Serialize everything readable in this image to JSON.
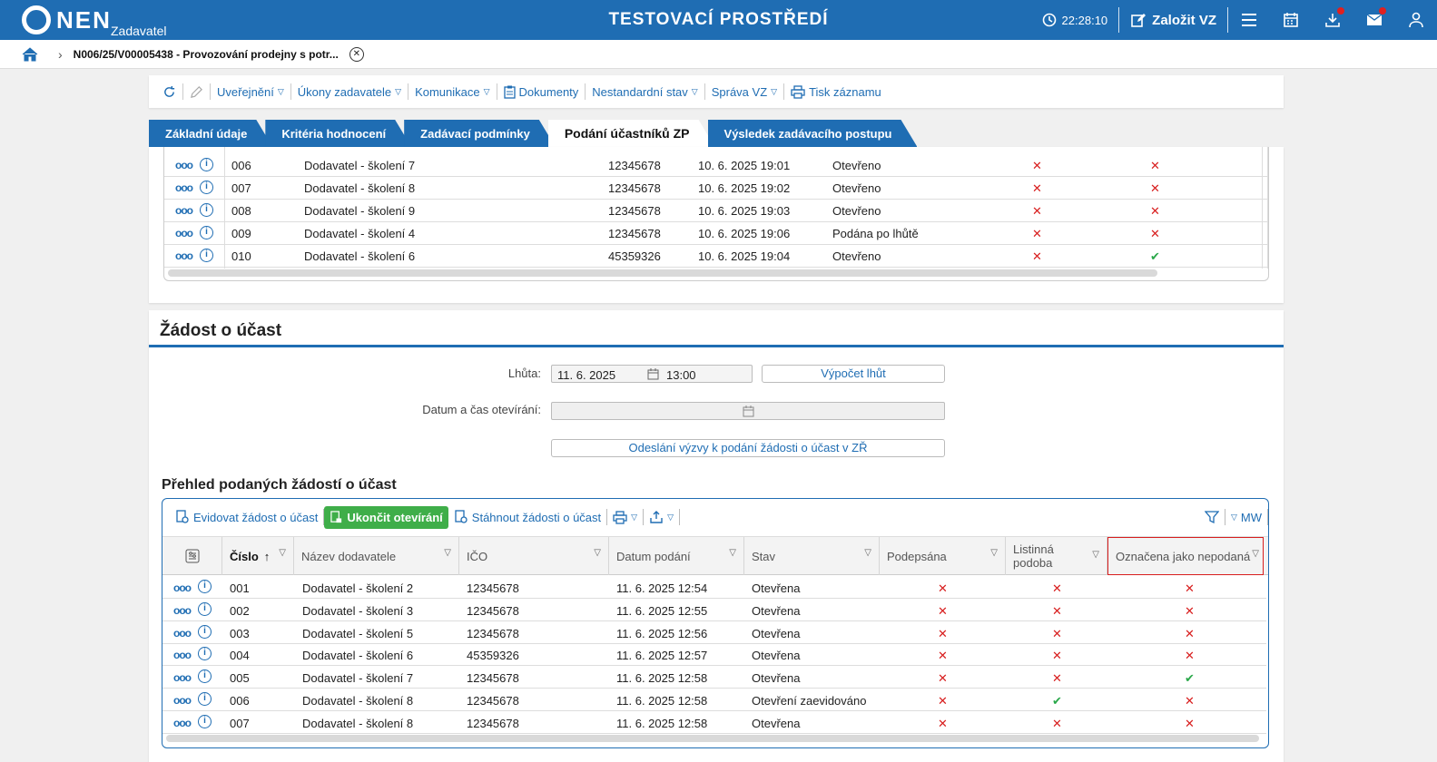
{
  "header": {
    "logo_text": "NEN",
    "logo_sub": "Zadavatel",
    "env_title": "TESTOVACÍ PROSTŘEDÍ",
    "time": "22:28:10",
    "create_label": "Založit VZ",
    "icons": [
      "menu-icon",
      "calendar-icon",
      "download-icon",
      "mail-icon",
      "user-icon"
    ],
    "accent_color": "#1f6db3"
  },
  "breadcrumb": {
    "text": "N006/25/V00005438 - Provozování prodejny s potr..."
  },
  "actions": [
    {
      "label": "Uveřejnění",
      "dropdown": true
    },
    {
      "label": "Úkony zadavatele",
      "dropdown": true
    },
    {
      "label": "Komunikace",
      "dropdown": true
    },
    {
      "label": "Dokumenty",
      "dropdown": false
    },
    {
      "label": "Nestandardní stav",
      "dropdown": true
    },
    {
      "label": "Správa VZ",
      "dropdown": true
    },
    {
      "label": "Tisk záznamu",
      "dropdown": false
    }
  ],
  "tabs": [
    {
      "label": "Základní údaje"
    },
    {
      "label": "Kritéria hodnocení"
    },
    {
      "label": "Zadávací podmínky"
    },
    {
      "label": "Podání účastníků ZP",
      "active": true
    },
    {
      "label": "Výsledek zadávacího postupu"
    }
  ],
  "top_table": {
    "rows": [
      {
        "num": "006",
        "name": "Dodavatel - školení 7",
        "ico": "12345678",
        "date": "10. 6. 2025 19:01",
        "state": "Otevřeno",
        "a": "x",
        "b": "x"
      },
      {
        "num": "007",
        "name": "Dodavatel - školení 8",
        "ico": "12345678",
        "date": "10. 6. 2025 19:02",
        "state": "Otevřeno",
        "a": "x",
        "b": "x"
      },
      {
        "num": "008",
        "name": "Dodavatel - školení 9",
        "ico": "12345678",
        "date": "10. 6. 2025 19:03",
        "state": "Otevřeno",
        "a": "x",
        "b": "x"
      },
      {
        "num": "009",
        "name": "Dodavatel - školení 4",
        "ico": "12345678",
        "date": "10. 6. 2025 19:06",
        "state": "Podána po lhůtě",
        "a": "x",
        "b": "x"
      },
      {
        "num": "010",
        "name": "Dodavatel - školení 6",
        "ico": "45359326",
        "date": "10. 6. 2025 19:04",
        "state": "Otevřeno",
        "a": "x",
        "b": "v"
      }
    ]
  },
  "section": {
    "title": "Žádost o účast",
    "deadline_label": "Lhůta:",
    "deadline_date": "11. 6. 2025",
    "deadline_time": "13:00",
    "calc_button": "Výpočet lhůt",
    "open_label": "Datum a čas otevírání:",
    "send_button": "Odeslání výzvy k podání žádosti o účast v ZŘ",
    "overview_title": "Přehled podaných žádostí o účast"
  },
  "grid_toolbar": {
    "register": "Evidovat žádost o účast",
    "finish": "Ukončit otevírání",
    "download": "Stáhnout žádosti o účast",
    "mw": "MW"
  },
  "columns": [
    "Číslo",
    "Název dodavatele",
    "IČO",
    "Datum podání",
    "Stav",
    "Podepsána",
    "Listinná podoba",
    "Označena jako nepodaná"
  ],
  "rows": [
    {
      "num": "001",
      "name": "Dodavatel - školení 2",
      "ico": "12345678",
      "date": "11. 6. 2025 12:54",
      "state": "Otevřena",
      "signed": "x",
      "paper": "x",
      "notsub": "x"
    },
    {
      "num": "002",
      "name": "Dodavatel - školení 3",
      "ico": "12345678",
      "date": "11. 6. 2025 12:55",
      "state": "Otevřena",
      "signed": "x",
      "paper": "x",
      "notsub": "x"
    },
    {
      "num": "003",
      "name": "Dodavatel - školení 5",
      "ico": "12345678",
      "date": "11. 6. 2025 12:56",
      "state": "Otevřena",
      "signed": "x",
      "paper": "x",
      "notsub": "x"
    },
    {
      "num": "004",
      "name": "Dodavatel - školení 6",
      "ico": "45359326",
      "date": "11. 6. 2025 12:57",
      "state": "Otevřena",
      "signed": "x",
      "paper": "x",
      "notsub": "x"
    },
    {
      "num": "005",
      "name": "Dodavatel - školení 7",
      "ico": "12345678",
      "date": "11. 6. 2025 12:58",
      "state": "Otevřena",
      "signed": "x",
      "paper": "x",
      "notsub": "v"
    },
    {
      "num": "006",
      "name": "Dodavatel - školení 8",
      "ico": "12345678",
      "date": "11. 6. 2025 12:58",
      "state": "Otevření zaevidováno",
      "signed": "x",
      "paper": "v",
      "notsub": "x"
    },
    {
      "num": "007",
      "name": "Dodavatel - školení 8",
      "ico": "12345678",
      "date": "11. 6. 2025 12:58",
      "state": "Otevřena",
      "signed": "x",
      "paper": "x",
      "notsub": "x"
    }
  ]
}
